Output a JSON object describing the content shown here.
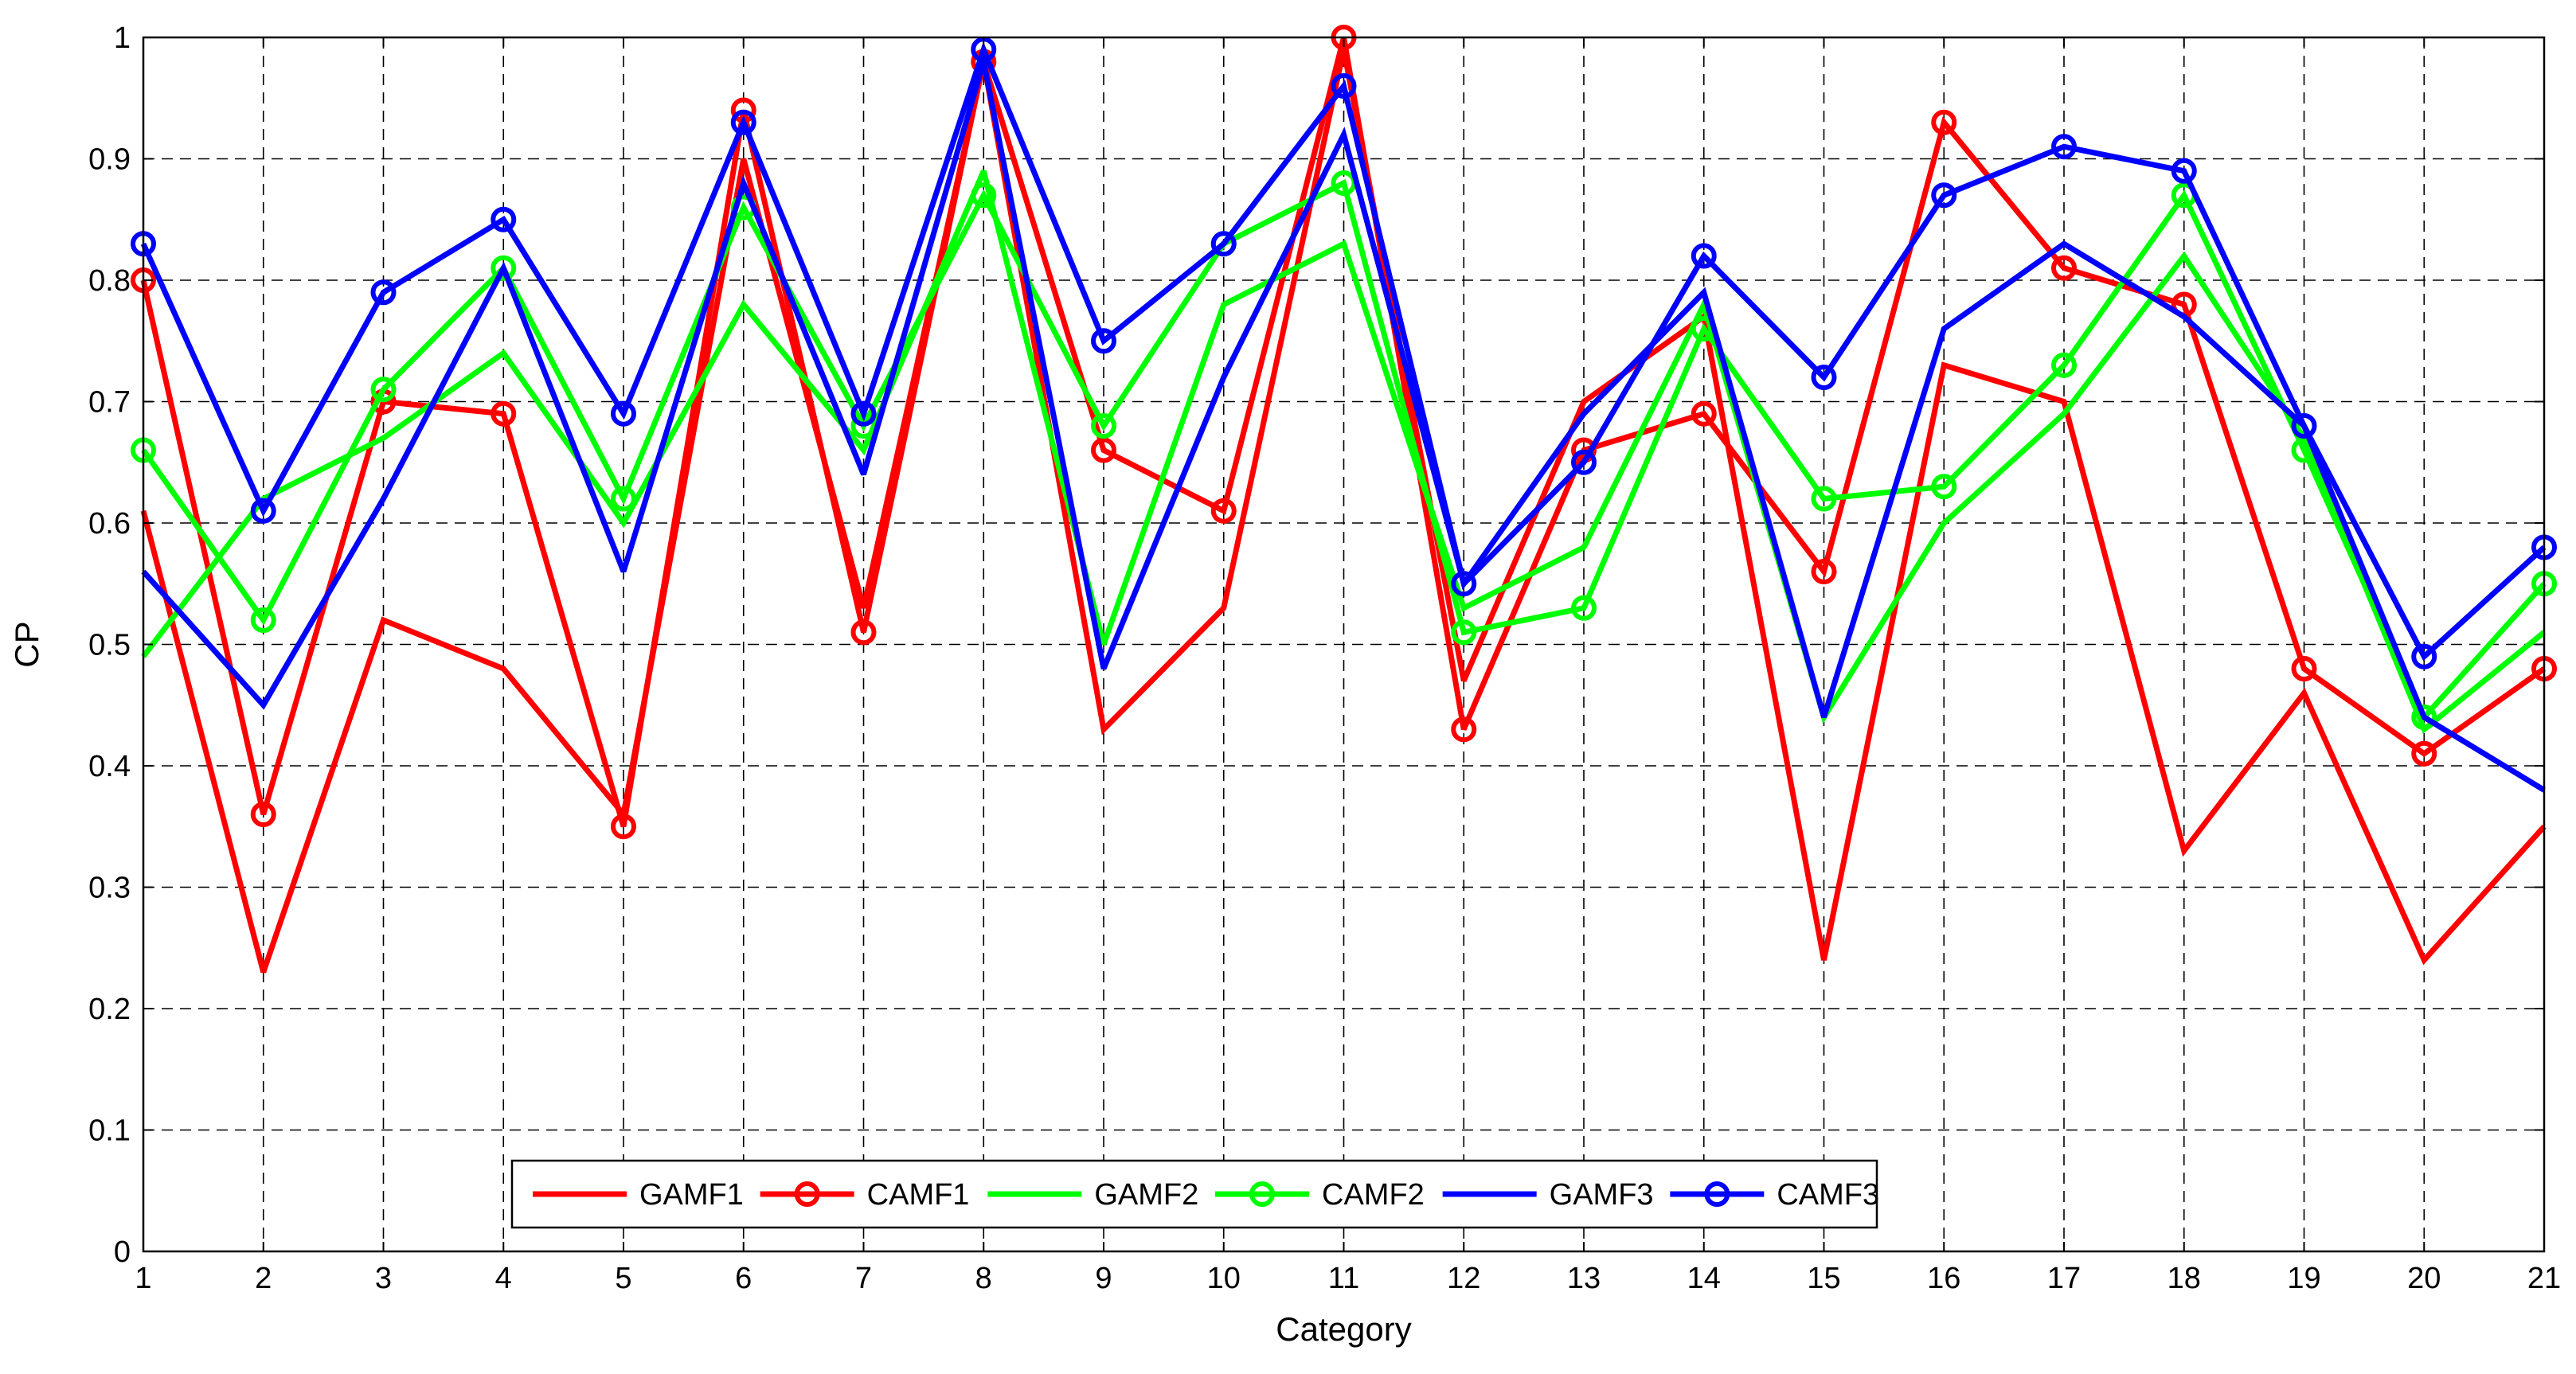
{
  "chart_data": {
    "type": "line",
    "title": "",
    "xlabel": "Category",
    "ylabel": "CP",
    "xlim": [
      1,
      21
    ],
    "ylim": [
      0,
      1
    ],
    "grid": true,
    "legend_position": "bottom-center",
    "x": [
      1,
      2,
      3,
      4,
      5,
      6,
      7,
      8,
      9,
      10,
      11,
      12,
      13,
      14,
      15,
      16,
      17,
      18,
      19,
      20,
      21
    ],
    "xticks": [
      "1",
      "2",
      "3",
      "4",
      "5",
      "6",
      "7",
      "8",
      "9",
      "10",
      "11",
      "12",
      "13",
      "14",
      "15",
      "16",
      "17",
      "18",
      "19",
      "20",
      "21"
    ],
    "yticks": [
      "0",
      "0.1",
      "0.2",
      "0.3",
      "0.4",
      "0.5",
      "0.6",
      "0.7",
      "0.8",
      "0.9",
      "1"
    ],
    "series": [
      {
        "name": "GAMF1",
        "color": "#ff0000",
        "marker": "none",
        "values": [
          0.61,
          0.23,
          0.52,
          0.48,
          0.36,
          0.9,
          0.53,
          0.98,
          0.43,
          0.53,
          0.99,
          0.47,
          0.7,
          0.77,
          0.24,
          0.73,
          0.7,
          0.33,
          0.46,
          0.24,
          0.35
        ]
      },
      {
        "name": "CAMF1",
        "color": "#ff0000",
        "marker": "circle",
        "values": [
          0.8,
          0.36,
          0.7,
          0.69,
          0.35,
          0.94,
          0.51,
          0.98,
          0.66,
          0.61,
          1.0,
          0.43,
          0.66,
          0.69,
          0.56,
          0.93,
          0.81,
          0.78,
          0.48,
          0.41,
          0.48
        ]
      },
      {
        "name": "GAMF2",
        "color": "#00ff00",
        "marker": "none",
        "values": [
          0.49,
          0.62,
          0.67,
          0.74,
          0.6,
          0.78,
          0.66,
          0.89,
          0.5,
          0.78,
          0.83,
          0.53,
          0.58,
          0.78,
          0.44,
          0.6,
          0.69,
          0.82,
          0.67,
          0.43,
          0.51
        ]
      },
      {
        "name": "CAMF2",
        "color": "#00ff00",
        "marker": "circle",
        "values": [
          0.66,
          0.52,
          0.71,
          0.81,
          0.62,
          0.86,
          0.68,
          0.87,
          0.68,
          0.83,
          0.88,
          0.51,
          0.53,
          0.76,
          0.62,
          0.63,
          0.73,
          0.87,
          0.66,
          0.44,
          0.55
        ]
      },
      {
        "name": "GAMF3",
        "color": "#0000ff",
        "marker": "none",
        "values": [
          0.56,
          0.45,
          0.62,
          0.81,
          0.56,
          0.88,
          0.64,
          0.98,
          0.48,
          0.72,
          0.92,
          0.55,
          0.69,
          0.79,
          0.44,
          0.76,
          0.83,
          0.77,
          0.68,
          0.44,
          0.38
        ]
      },
      {
        "name": "CAMF3",
        "color": "#0000ff",
        "marker": "circle",
        "values": [
          0.83,
          0.61,
          0.79,
          0.85,
          0.69,
          0.93,
          0.69,
          0.99,
          0.75,
          0.83,
          0.96,
          0.55,
          0.65,
          0.82,
          0.72,
          0.87,
          0.91,
          0.89,
          0.68,
          0.49,
          0.58
        ]
      }
    ]
  }
}
